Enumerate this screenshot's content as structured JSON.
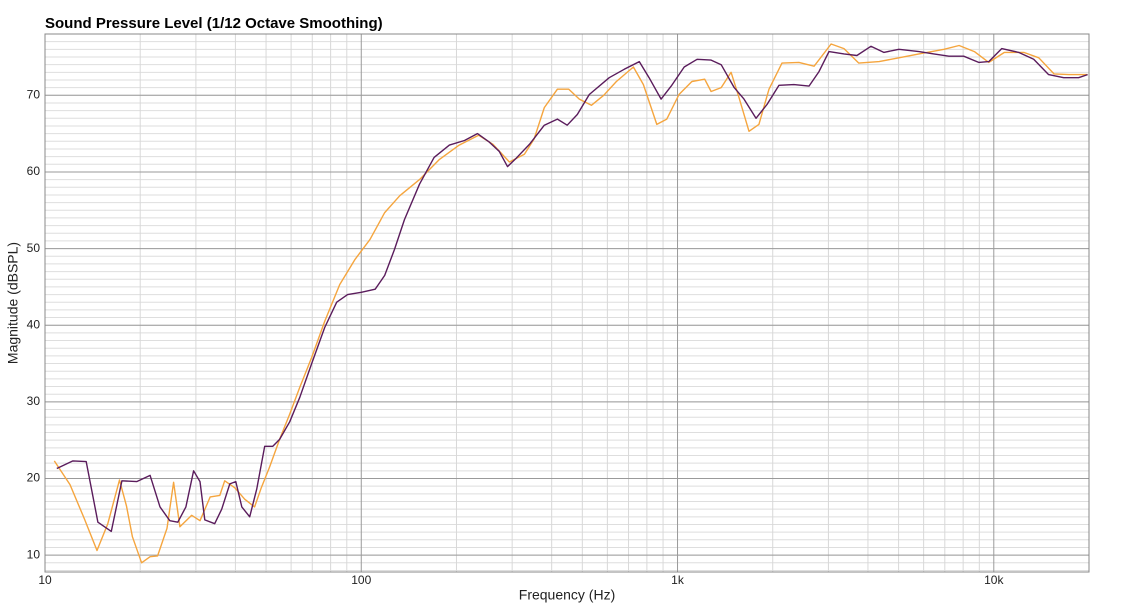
{
  "chart_data": {
    "type": "line",
    "title": "Sound Pressure Level (1/12 Octave Smoothing)",
    "x_label": "Frequency (Hz)",
    "y_label": "Magnitude (dBSPL)",
    "x_scale": "log",
    "xlim": [
      10,
      20000
    ],
    "ylim": [
      7.8,
      78
    ],
    "xticks": [
      10,
      100,
      {
        "value": 1000,
        "label": "1k"
      },
      {
        "value": 10000,
        "label": "10k"
      }
    ],
    "yticks": [
      10,
      20,
      30,
      40,
      50,
      60,
      70
    ],
    "grid": true,
    "minor_grid": true,
    "series": [
      {
        "color": "#5a1c5c",
        "x": [
          10.9,
          12.25,
          13.5,
          14.7,
          16.2,
          17.5,
          19.5,
          21.5,
          23.1,
          24.8,
          26.3,
          27.9,
          29.5,
          30.9,
          32,
          34.4,
          36.2,
          38.4,
          40.1,
          41.9,
          44.4,
          46.7,
          49.5,
          52.5,
          55.2,
          59.4,
          63.9,
          69.7,
          76.6,
          83.6,
          90.5,
          100,
          110.7,
          118.6,
          127.4,
          137,
          152.8,
          170,
          190,
          212,
          233,
          254,
          273,
          290,
          309,
          340,
          379,
          417,
          448,
          482,
          526,
          608,
          678,
          757,
          813,
          887,
          955,
          1050,
          1153,
          1277,
          1374,
          1511,
          1623,
          1771,
          1918,
          2094,
          2334,
          2604,
          2802,
          3013,
          3359,
          3692,
          4087,
          4490,
          5012,
          5795,
          6460,
          7212,
          8035,
          8958,
          9640,
          10590,
          11990,
          13370,
          14900,
          16630,
          18540,
          19800
        ],
        "values": [
          21.3,
          22.3,
          22.2,
          14.3,
          13.1,
          19.7,
          19.6,
          20.4,
          16.3,
          14.5,
          14.3,
          16.3,
          21.0,
          19.6,
          14.6,
          14.1,
          16.0,
          19.3,
          19.6,
          16.3,
          15.0,
          18.6,
          24.2,
          24.2,
          25.1,
          27.4,
          30.6,
          35.0,
          39.7,
          43.0,
          44.0,
          44.3,
          44.7,
          46.5,
          49.9,
          53.8,
          58.4,
          61.9,
          63.5,
          64.1,
          65.0,
          63.9,
          62.7,
          60.7,
          61.8,
          63.6,
          66.1,
          66.9,
          66.1,
          67.5,
          70.1,
          72.3,
          73.4,
          74.4,
          72.3,
          69.5,
          71.2,
          73.7,
          74.7,
          74.6,
          74.0,
          71.0,
          69.5,
          67.0,
          68.8,
          71.3,
          71.4,
          71.2,
          73.1,
          75.7,
          75.4,
          75.2,
          76.4,
          75.6,
          76.0,
          75.7,
          75.4,
          75.1,
          75.1,
          74.3,
          74.4,
          76.1,
          75.6,
          74.7,
          72.7,
          72.3,
          72.3,
          72.7
        ]
      },
      {
        "color": "#f5a53e",
        "x": [
          10.7,
          12.0,
          13.3,
          14.6,
          15.8,
          17.2,
          18.1,
          18.9,
          20.2,
          21.5,
          22.7,
          24.3,
          25.5,
          26.7,
          29.1,
          30.9,
          33.3,
          35.7,
          37,
          39.8,
          42.8,
          46,
          48.3,
          51.3,
          55.2,
          59.4,
          63.9,
          69.7,
          76.6,
          85.5,
          95.6,
          106.6,
          118.6,
          132.4,
          152.8,
          176.3,
          204,
          235,
          261,
          294,
          328,
          352,
          379,
          417,
          453,
          489,
          534,
          584,
          641,
          725,
          780,
          860,
          925,
          1011,
          1110,
          1219,
          1277,
          1374,
          1477,
          1565,
          1682,
          1808,
          1946,
          2140,
          2419,
          2702,
          3059,
          3359,
          3743,
          4342,
          5012,
          5795,
          6960,
          7770,
          8685,
          9640,
          10800,
          12440,
          13880,
          15500,
          17300,
          19800
        ],
        "values": [
          22.3,
          19.2,
          14.8,
          10.6,
          14.1,
          19.8,
          16.4,
          12.4,
          9.0,
          9.8,
          9.9,
          13.5,
          19.5,
          13.7,
          15.2,
          14.5,
          17.6,
          17.8,
          19.7,
          18.8,
          17.3,
          16.3,
          18.8,
          21.5,
          25.1,
          28.4,
          31.9,
          35.8,
          40.5,
          45.3,
          48.6,
          51.2,
          54.7,
          56.9,
          59.0,
          61.6,
          63.5,
          64.8,
          63.6,
          61.3,
          62.3,
          64.3,
          68.4,
          70.8,
          70.8,
          69.5,
          68.7,
          70.0,
          71.8,
          73.7,
          71.4,
          66.2,
          66.9,
          70.1,
          71.8,
          72.1,
          70.5,
          71.0,
          73.0,
          69.7,
          65.3,
          66.2,
          70.8,
          74.2,
          74.3,
          73.8,
          76.7,
          76.1,
          74.2,
          74.4,
          74.9,
          75.4,
          76.0,
          76.5,
          75.7,
          74.3,
          75.6,
          75.6,
          74.9,
          72.8,
          72.7,
          72.7
        ]
      }
    ]
  }
}
